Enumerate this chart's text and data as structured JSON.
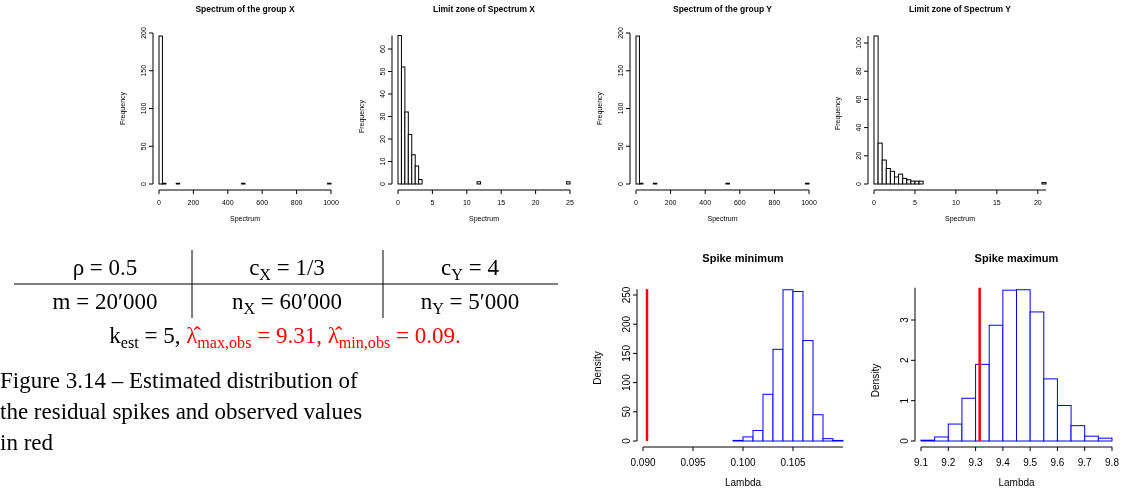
{
  "chart_data": [
    {
      "type": "histogram",
      "title": "Spectrum of the group X",
      "xlabel": "Spectrum",
      "ylabel": "Frequency",
      "color": "#000000",
      "xlim": [
        0,
        1000
      ],
      "xticks": [
        0,
        200,
        400,
        600,
        800,
        1000
      ],
      "ylim": [
        0,
        200
      ],
      "yticks": [
        0,
        50,
        100,
        150,
        200
      ],
      "bins": [
        0,
        20,
        40,
        60,
        80,
        100,
        120,
        140,
        160,
        180,
        200,
        220,
        240,
        260,
        280,
        300,
        320,
        340,
        360,
        380,
        400,
        420,
        440,
        460,
        480,
        500,
        520,
        540,
        560,
        580,
        600,
        620,
        640,
        660,
        680,
        700,
        720,
        740,
        760,
        780,
        800,
        820,
        840,
        860,
        880,
        900,
        920,
        940,
        960,
        980,
        1000
      ],
      "values": [
        196,
        1,
        0,
        0,
        0,
        1,
        0,
        0,
        0,
        0,
        0,
        0,
        0,
        0,
        0,
        0,
        0,
        0,
        0,
        0,
        0,
        0,
        0,
        0,
        1,
        0,
        0,
        0,
        0,
        0,
        0,
        0,
        0,
        0,
        0,
        0,
        0,
        0,
        0,
        0,
        0,
        0,
        0,
        0,
        0,
        0,
        0,
        0,
        0,
        1
      ]
    },
    {
      "type": "histogram",
      "title": "Limit zone of Spectrum X",
      "xlabel": "Spectrum",
      "ylabel": "Frequency",
      "color": "#000000",
      "xlim": [
        0,
        25
      ],
      "xticks": [
        0,
        5,
        10,
        15,
        20,
        25
      ],
      "ylim": [
        0,
        66
      ],
      "yticks": [
        0,
        10,
        20,
        30,
        40,
        50,
        60
      ],
      "bins": [
        0,
        0.5,
        1,
        1.5,
        2,
        2.5,
        3,
        3.5,
        4,
        4.5,
        5,
        5.5,
        6,
        6.5,
        7,
        7.5,
        8,
        8.5,
        9,
        9.5,
        10,
        10.5,
        11,
        11.5,
        12,
        12.5,
        13,
        13.5,
        14,
        14.5,
        15,
        15.5,
        16,
        16.5,
        17,
        17.5,
        18,
        18.5,
        19,
        19.5,
        20,
        20.5,
        21,
        21.5,
        22,
        22.5,
        23,
        23.5,
        24,
        24.5,
        25
      ],
      "values": [
        66,
        52,
        32,
        22,
        13,
        8,
        2,
        0,
        0,
        0,
        0,
        0,
        0,
        0,
        0,
        0,
        0,
        0,
        0,
        0,
        0,
        0,
        0,
        1,
        0,
        0,
        0,
        0,
        0,
        0,
        0,
        0,
        0,
        0,
        0,
        0,
        0,
        0,
        0,
        0,
        0,
        0,
        0,
        0,
        0,
        0,
        0,
        0,
        0,
        1
      ]
    },
    {
      "type": "histogram",
      "title": "Spectrum of the group Y",
      "xlabel": "Spectrum",
      "ylabel": "Frequency",
      "color": "#000000",
      "xlim": [
        0,
        1000
      ],
      "xticks": [
        0,
        200,
        400,
        600,
        800,
        1000
      ],
      "ylim": [
        0,
        200
      ],
      "yticks": [
        0,
        50,
        100,
        150,
        200
      ],
      "bins": [
        0,
        20,
        40,
        60,
        80,
        100,
        120,
        140,
        160,
        180,
        200,
        220,
        240,
        260,
        280,
        300,
        320,
        340,
        360,
        380,
        400,
        420,
        440,
        460,
        480,
        500,
        520,
        540,
        560,
        580,
        600,
        620,
        640,
        660,
        680,
        700,
        720,
        740,
        760,
        780,
        800,
        820,
        840,
        860,
        880,
        900,
        920,
        940,
        960,
        980,
        1000
      ],
      "values": [
        196,
        1,
        0,
        0,
        0,
        1,
        0,
        0,
        0,
        0,
        0,
        0,
        0,
        0,
        0,
        0,
        0,
        0,
        0,
        0,
        0,
        0,
        0,
        0,
        0,
        0,
        1,
        0,
        0,
        0,
        0,
        0,
        0,
        0,
        0,
        0,
        0,
        0,
        0,
        0,
        0,
        0,
        0,
        0,
        0,
        0,
        0,
        0,
        0,
        1
      ]
    },
    {
      "type": "histogram",
      "title": "Limit zone of Spectrum Y",
      "xlabel": "Spectrum",
      "ylabel": "Frequency",
      "color": "#000000",
      "xlim": [
        0,
        21
      ],
      "xticks": [
        0,
        5,
        10,
        15,
        20
      ],
      "ylim": [
        0,
        105
      ],
      "yticks": [
        0,
        20,
        40,
        60,
        80,
        100
      ],
      "bins": [
        0,
        0.5,
        1,
        1.5,
        2,
        2.5,
        3,
        3.5,
        4,
        4.5,
        5,
        5.5,
        6,
        6.5,
        7,
        7.5,
        8,
        8.5,
        9,
        9.5,
        10,
        10.5,
        11,
        11.5,
        12,
        12.5,
        13,
        13.5,
        14,
        14.5,
        15,
        15.5,
        16,
        16.5,
        17,
        17.5,
        18,
        18.5,
        19,
        19.5,
        20,
        20.5,
        21
      ],
      "values": [
        105,
        29,
        17,
        11,
        9,
        5,
        7,
        4,
        3,
        2,
        2,
        2,
        0,
        0,
        0,
        0,
        0,
        0,
        0,
        0,
        0,
        0,
        0,
        0,
        0,
        0,
        0,
        0,
        0,
        0,
        0,
        0,
        0,
        0,
        0,
        0,
        0,
        0,
        0,
        0,
        0,
        1
      ]
    },
    {
      "type": "other",
      "annotations": [
        "ρ = 0.5",
        "c$_{X}$ = 1/3",
        "c$_{Y}$ = 4",
        "m = 20′000",
        "n$_{X}$ = 60′000",
        "n$_{Y}$ = 5′000",
        "k$_{est}$ = 5,",
        "λ̂$_{max,obs}$ = 9.31,",
        "λ̂$_{min,obs}$ = 0.09.",
        "Figure 3.14 – Estimated distribution of the residual spikes and observed values in red"
      ]
    },
    {
      "type": "histogram",
      "title": "Spike minimum",
      "xlabel": "Lambda",
      "ylabel": "Density",
      "color": "#0000ff",
      "xlim": [
        0.09,
        0.11
      ],
      "xticks": [
        {
          "value": 0.09,
          "label": "0.090"
        },
        {
          "value": 0.095,
          "label": "0.095"
        },
        {
          "value": 0.1,
          "label": "0.100"
        },
        {
          "value": 0.105,
          "label": "0.105"
        }
      ],
      "ylim": [
        0,
        260
      ],
      "yticks": [
        0,
        50,
        100,
        150,
        200,
        250
      ],
      "bins": [
        0.099,
        0.1,
        0.101,
        0.102,
        0.103,
        0.104,
        0.105,
        0.106,
        0.107,
        0.108,
        0.109,
        0.11
      ],
      "values": [
        1,
        7,
        18,
        80,
        157,
        259,
        256,
        172,
        45,
        4,
        1
      ],
      "ref_lines": [
        {
          "axis": "x",
          "value": 0.0904,
          "color": "#ff0000"
        }
      ]
    },
    {
      "type": "histogram",
      "title": "Spike maximum",
      "xlabel": "Lambda",
      "ylabel": "Density",
      "color": "#0000ff",
      "xlim": [
        9.1,
        9.8
      ],
      "xticks": [
        9.1,
        9.2,
        9.3,
        9.4,
        9.5,
        9.6,
        9.7,
        9.8
      ],
      "ylim": [
        0,
        3.8
      ],
      "yticks": [
        0,
        1,
        2,
        3
      ],
      "bins": [
        9.1,
        9.15,
        9.2,
        9.25,
        9.3,
        9.35,
        9.4,
        9.45,
        9.5,
        9.55,
        9.6,
        9.65,
        9.7,
        9.75,
        9.8
      ],
      "values": [
        0.02,
        0.1,
        0.42,
        1.06,
        1.9,
        2.87,
        3.74,
        3.75,
        3.2,
        1.54,
        0.88,
        0.38,
        0.12,
        0.07
      ],
      "ref_lines": [
        {
          "axis": "x",
          "value": 9.315,
          "color": "#ff0000"
        }
      ]
    }
  ]
}
